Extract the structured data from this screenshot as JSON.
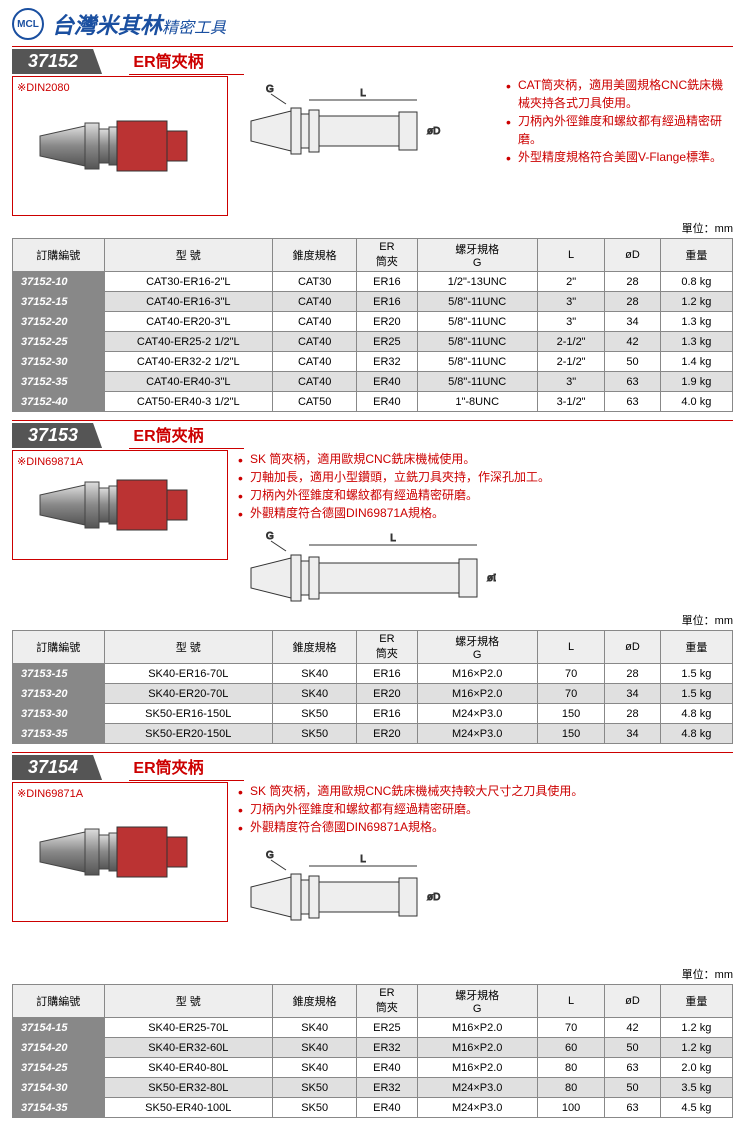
{
  "brand": {
    "main": "台灣米其林",
    "sub": "精密工具",
    "logo": "MCL"
  },
  "sections": [
    {
      "partNum": "37152",
      "title": "ER筒夾柄",
      "photoLabel": "※DIN2080",
      "bullets": [
        "CAT筒夾柄，適用美國規格CNC銑床機械夾持各式刀具使用。",
        "刀柄內外徑錐度和螺紋都有經過精密研磨。",
        "外型精度規格符合美國V-Flange標準。"
      ],
      "unit": "單位：mm",
      "headers": [
        "訂購編號",
        "型 號",
        "錐度規格",
        "ER\n筒夾",
        "螺牙規格\nG",
        "L",
        "øD",
        "重量"
      ],
      "rows": [
        [
          "37152-10",
          "CAT30-ER16-2\"L",
          "CAT30",
          "ER16",
          "1/2\"-13UNC",
          "2\"",
          "28",
          "0.8 kg"
        ],
        [
          "37152-15",
          "CAT40-ER16-3\"L",
          "CAT40",
          "ER16",
          "5/8\"-11UNC",
          "3\"",
          "28",
          "1.2 kg"
        ],
        [
          "37152-20",
          "CAT40-ER20-3\"L",
          "CAT40",
          "ER20",
          "5/8\"-11UNC",
          "3\"",
          "34",
          "1.3 kg"
        ],
        [
          "37152-25",
          "CAT40-ER25-2 1/2\"L",
          "CAT40",
          "ER25",
          "5/8\"-11UNC",
          "2-1/2\"",
          "42",
          "1.3 kg"
        ],
        [
          "37152-30",
          "CAT40-ER32-2 1/2\"L",
          "CAT40",
          "ER32",
          "5/8\"-11UNC",
          "2-1/2\"",
          "50",
          "1.4 kg"
        ],
        [
          "37152-35",
          "CAT40-ER40-3\"L",
          "CAT40",
          "ER40",
          "5/8\"-11UNC",
          "3\"",
          "63",
          "1.9 kg"
        ],
        [
          "37152-40",
          "CAT50-ER40-3 1/2\"L",
          "CAT50",
          "ER40",
          "1\"-8UNC",
          "3-1/2\"",
          "63",
          "4.0 kg"
        ]
      ]
    },
    {
      "partNum": "37153",
      "title": "ER筒夾柄",
      "photoLabel": "※DIN69871A",
      "bullets": [
        "SK 筒夾柄，適用歐規CNC銑床機械使用。",
        "刀軸加長，適用小型鑽頭，立銑刀具夾持，作深孔加工。",
        "刀柄內外徑錐度和螺紋都有經過精密研磨。",
        "外觀精度符合德國DIN69871A規格。"
      ],
      "unit": "單位：mm",
      "headers": [
        "訂購編號",
        "型 號",
        "錐度規格",
        "ER\n筒夾",
        "螺牙規格\nG",
        "L",
        "øD",
        "重量"
      ],
      "rows": [
        [
          "37153-15",
          "SK40-ER16-70L",
          "SK40",
          "ER16",
          "M16×P2.0",
          "70",
          "28",
          "1.5 kg"
        ],
        [
          "37153-20",
          "SK40-ER20-70L",
          "SK40",
          "ER20",
          "M16×P2.0",
          "70",
          "34",
          "1.5 kg"
        ],
        [
          "37153-30",
          "SK50-ER16-150L",
          "SK50",
          "ER16",
          "M24×P3.0",
          "150",
          "28",
          "4.8 kg"
        ],
        [
          "37153-35",
          "SK50-ER20-150L",
          "SK50",
          "ER20",
          "M24×P3.0",
          "150",
          "34",
          "4.8 kg"
        ]
      ]
    },
    {
      "partNum": "37154",
      "title": "ER筒夾柄",
      "photoLabel": "※DIN69871A",
      "bullets": [
        "SK 筒夾柄，適用歐規CNC銑床機械夾持較大尺寸之刀具使用。",
        "刀柄內外徑錐度和螺紋都有經過精密研磨。",
        "外觀精度符合德國DIN69871A規格。"
      ],
      "unit": "單位：mm",
      "headers": [
        "訂購編號",
        "型 號",
        "錐度規格",
        "ER\n筒夾",
        "螺牙規格\nG",
        "L",
        "øD",
        "重量"
      ],
      "rows": [
        [
          "37154-15",
          "SK40-ER25-70L",
          "SK40",
          "ER25",
          "M16×P2.0",
          "70",
          "42",
          "1.2 kg"
        ],
        [
          "37154-20",
          "SK40-ER32-60L",
          "SK40",
          "ER32",
          "M16×P2.0",
          "60",
          "50",
          "1.2 kg"
        ],
        [
          "37154-25",
          "SK40-ER40-80L",
          "SK40",
          "ER40",
          "M16×P2.0",
          "80",
          "63",
          "2.0 kg"
        ],
        [
          "37154-30",
          "SK50-ER32-80L",
          "SK50",
          "ER32",
          "M24×P3.0",
          "80",
          "50",
          "3.5 kg"
        ],
        [
          "37154-35",
          "SK50-ER40-100L",
          "SK50",
          "ER40",
          "M24×P3.0",
          "100",
          "63",
          "4.5 kg"
        ]
      ]
    }
  ],
  "diagLabels": {
    "L": "L",
    "G": "G",
    "D": "øD"
  }
}
